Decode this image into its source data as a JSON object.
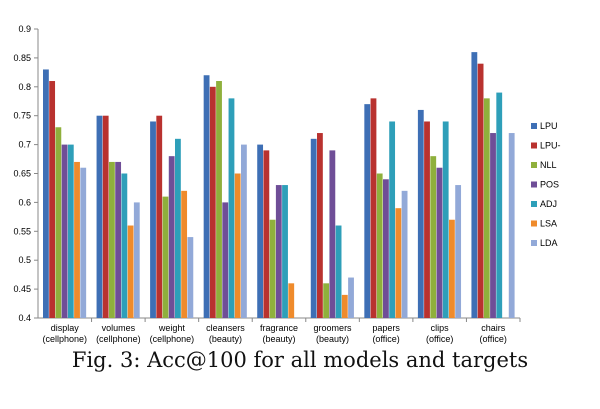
{
  "caption": "Fig. 3: Acc@100 for all models and targets",
  "chart_data": {
    "type": "bar",
    "categories": [
      [
        "display",
        "(cellphone)"
      ],
      [
        "volumes",
        "(cellphone)"
      ],
      [
        "weight",
        "(cellphone)"
      ],
      [
        "cleansers",
        "(beauty)"
      ],
      [
        "fragrance",
        "(beauty)"
      ],
      [
        "groomers",
        "(beauty)"
      ],
      [
        "papers",
        "(office)"
      ],
      [
        "clips",
        "(office)"
      ],
      [
        "chairs",
        "(office)"
      ]
    ],
    "series": [
      {
        "name": "LPU",
        "color": "#3e6fb5",
        "values": [
          0.83,
          0.75,
          0.74,
          0.82,
          0.7,
          0.71,
          0.77,
          0.76,
          0.86
        ]
      },
      {
        "name": "LPU-",
        "color": "#b9322f",
        "values": [
          0.81,
          0.75,
          0.75,
          0.8,
          0.69,
          0.72,
          0.78,
          0.74,
          0.84
        ]
      },
      {
        "name": "NLL",
        "color": "#8fb03c",
        "values": [
          0.73,
          0.67,
          0.61,
          0.81,
          0.57,
          0.46,
          0.65,
          0.68,
          0.78
        ]
      },
      {
        "name": "POS",
        "color": "#6f4e97",
        "values": [
          0.7,
          0.67,
          0.68,
          0.6,
          0.63,
          0.69,
          0.64,
          0.66,
          0.72
        ]
      },
      {
        "name": "ADJ",
        "color": "#2e9fb9",
        "values": [
          0.7,
          0.65,
          0.71,
          0.78,
          0.63,
          0.56,
          0.74,
          0.74,
          0.79
        ]
      },
      {
        "name": "LSA",
        "color": "#ef8b2c",
        "values": [
          0.67,
          0.56,
          0.62,
          0.65,
          0.46,
          0.44,
          0.59,
          0.57,
          0.4
        ]
      },
      {
        "name": "LDA",
        "color": "#92a9d8",
        "values": [
          0.66,
          0.6,
          0.54,
          0.7,
          0.4,
          0.47,
          0.62,
          0.63,
          0.72
        ]
      }
    ],
    "yticks": [
      "0.4",
      "0.45",
      "0.5",
      "0.55",
      "0.6",
      "0.65",
      "0.7",
      "0.75",
      "0.8",
      "0.85",
      "0.9"
    ],
    "ylim": [
      0.4,
      0.9
    ],
    "grid": false,
    "legend_position": "right"
  }
}
